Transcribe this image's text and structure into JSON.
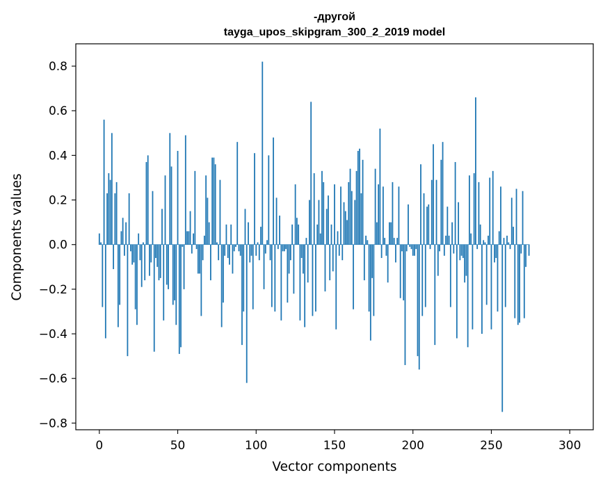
{
  "chart_data": {
    "type": "bar",
    "title_line1": "-другой",
    "title_line2": "tayga_upos_skipgram_300_2_2019 model",
    "xlabel": "Vector components",
    "ylabel": "Components values",
    "xlim": [
      -15,
      315
    ],
    "ylim": [
      -0.83,
      0.9
    ],
    "x_ticks": [
      0,
      50,
      100,
      150,
      200,
      250,
      300
    ],
    "x_tick_labels": [
      "0",
      "50",
      "100",
      "150",
      "200",
      "250",
      "300"
    ],
    "y_ticks": [
      -0.8,
      -0.6,
      -0.4,
      -0.2,
      0.0,
      0.2,
      0.4,
      0.6,
      0.8
    ],
    "y_tick_labels": [
      "−0.8",
      "−0.6",
      "−0.4",
      "−0.2",
      "0.0",
      "0.2",
      "0.4",
      "0.6",
      "0.8"
    ],
    "bar_color": "#1f77b4",
    "values": [
      0.05,
      0.01,
      -0.28,
      0.56,
      -0.42,
      0.23,
      0.32,
      0.29,
      0.5,
      -0.11,
      0.23,
      0.28,
      -0.37,
      -0.27,
      0.06,
      0.12,
      -0.05,
      0.1,
      -0.5,
      0.23,
      -0.03,
      -0.09,
      -0.08,
      -0.29,
      -0.36,
      0.05,
      -0.07,
      -0.19,
      0.01,
      -0.16,
      0.37,
      0.4,
      -0.14,
      -0.08,
      0.24,
      -0.48,
      -0.06,
      -0.1,
      -0.16,
      -0.15,
      0.16,
      -0.34,
      0.31,
      -0.18,
      -0.2,
      0.5,
      0.35,
      -0.27,
      -0.25,
      -0.36,
      0.42,
      -0.49,
      -0.46,
      -0.01,
      -0.2,
      0.49,
      0.06,
      0.06,
      0.15,
      -0.04,
      0.05,
      0.33,
      -0.02,
      -0.13,
      -0.13,
      -0.32,
      -0.07,
      0.04,
      0.31,
      0.21,
      0.1,
      -0.16,
      0.39,
      0.39,
      0.36,
      0.01,
      -0.07,
      0.29,
      -0.37,
      -0.26,
      -0.05,
      0.09,
      -0.06,
      -0.09,
      0.09,
      -0.13,
      -0.03,
      -0.01,
      0.46,
      -0.03,
      -0.05,
      -0.45,
      -0.3,
      0.16,
      -0.62,
      0.1,
      -0.08,
      -0.05,
      -0.29,
      0.41,
      -0.05,
      0.01,
      -0.07,
      0.08,
      0.82,
      -0.2,
      -0.04,
      0.02,
      0.4,
      -0.07,
      -0.28,
      0.48,
      -0.3,
      0.21,
      -0.02,
      0.13,
      -0.34,
      -0.03,
      -0.03,
      -0.02,
      -0.26,
      -0.13,
      -0.07,
      0.09,
      -0.22,
      0.27,
      0.12,
      0.09,
      -0.34,
      -0.06,
      -0.13,
      -0.37,
      0.03,
      -0.17,
      0.2,
      0.64,
      -0.32,
      0.32,
      -0.3,
      0.09,
      0.2,
      0.05,
      0.33,
      0.28,
      -0.21,
      0.16,
      0.22,
      -0.16,
      0.09,
      -0.12,
      0.27,
      -0.38,
      0.06,
      -0.05,
      0.26,
      -0.07,
      0.19,
      0.15,
      0.11,
      0.28,
      0.34,
      0.24,
      -0.29,
      0.2,
      0.33,
      0.42,
      0.43,
      0.23,
      0.38,
      -0.16,
      0.04,
      0.02,
      -0.3,
      -0.43,
      -0.15,
      -0.32,
      0.34,
      0.1,
      0.27,
      0.52,
      -0.06,
      0.26,
      0.03,
      -0.05,
      -0.17,
      0.1,
      0.1,
      0.28,
      0.03,
      -0.08,
      0.03,
      0.26,
      -0.24,
      -0.03,
      -0.25,
      -0.54,
      -0.03,
      0.18,
      -0.01,
      -0.02,
      -0.05,
      -0.05,
      -0.02,
      -0.5,
      -0.56,
      0.36,
      -0.32,
      0.23,
      -0.28,
      0.17,
      0.18,
      -0.02,
      0.29,
      0.45,
      -0.45,
      0.29,
      -0.14,
      -0.03,
      0.38,
      0.46,
      -0.05,
      0.04,
      0.17,
      0.04,
      -0.28,
      0.1,
      -0.04,
      0.37,
      -0.42,
      0.19,
      -0.07,
      -0.05,
      -0.06,
      -0.17,
      -0.14,
      -0.46,
      0.31,
      0.05,
      -0.38,
      0.32,
      0.66,
      -0.02,
      0.28,
      0.09,
      -0.4,
      0.02,
      0.01,
      -0.27,
      0.04,
      0.3,
      -0.38,
      0.33,
      -0.08,
      -0.06,
      -0.3,
      0.06,
      0.26,
      -0.75,
      0.03,
      -0.28,
      0.04,
      0.01,
      -0.02,
      0.21,
      0.08,
      -0.33,
      0.25,
      -0.36,
      -0.35,
      -0.04,
      0.24,
      -0.33,
      -0.1,
      0.0,
      -0.05
    ]
  }
}
